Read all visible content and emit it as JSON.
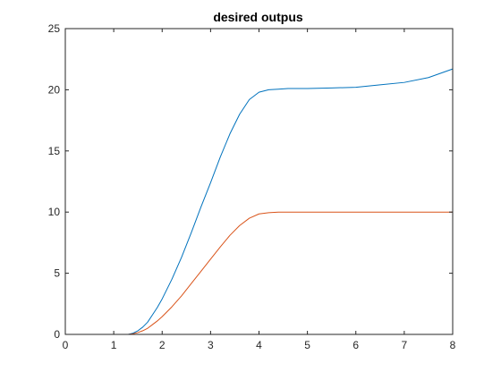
{
  "chart_data": {
    "type": "line",
    "title": "desired outpus",
    "xlabel": "",
    "ylabel": "",
    "xlim": [
      0,
      8
    ],
    "ylim": [
      0,
      25
    ],
    "xticks": [
      0,
      1,
      2,
      3,
      4,
      5,
      6,
      7,
      8
    ],
    "yticks": [
      0,
      5,
      10,
      15,
      20,
      25
    ],
    "grid": false,
    "series": [
      {
        "color": "#0072BD",
        "x": [
          0,
          0.5,
          1.0,
          1.3,
          1.4,
          1.5,
          1.6,
          1.7,
          1.8,
          1.9,
          2.0,
          2.2,
          2.4,
          2.6,
          2.8,
          3.0,
          3.2,
          3.4,
          3.6,
          3.8,
          4.0,
          4.2,
          4.4,
          4.6,
          4.8,
          5.0,
          5.5,
          6.0,
          6.5,
          7.0,
          7.5,
          8.0
        ],
        "y": [
          0,
          0,
          0,
          0,
          0.1,
          0.3,
          0.6,
          1.0,
          1.6,
          2.2,
          2.9,
          4.5,
          6.3,
          8.3,
          10.4,
          12.4,
          14.5,
          16.4,
          18.0,
          19.2,
          19.8,
          20.0,
          20.05,
          20.1,
          20.1,
          20.1,
          20.15,
          20.2,
          20.4,
          20.6,
          21.0,
          21.7
        ]
      },
      {
        "color": "#D95319",
        "x": [
          0,
          0.5,
          1.0,
          1.3,
          1.4,
          1.5,
          1.6,
          1.7,
          1.8,
          1.9,
          2.0,
          2.2,
          2.4,
          2.6,
          2.8,
          3.0,
          3.2,
          3.4,
          3.6,
          3.8,
          4.0,
          4.2,
          4.4,
          4.6,
          4.8,
          5.0,
          5.5,
          6.0,
          6.5,
          7.0,
          7.5,
          8.0
        ],
        "y": [
          0,
          0,
          0,
          0,
          0.05,
          0.15,
          0.3,
          0.5,
          0.8,
          1.1,
          1.45,
          2.25,
          3.15,
          4.15,
          5.15,
          6.15,
          7.15,
          8.1,
          8.9,
          9.5,
          9.85,
          9.95,
          10.0,
          10.0,
          10.0,
          10.0,
          10.0,
          10.0,
          10.0,
          10.0,
          10.0,
          10.0
        ]
      }
    ]
  }
}
